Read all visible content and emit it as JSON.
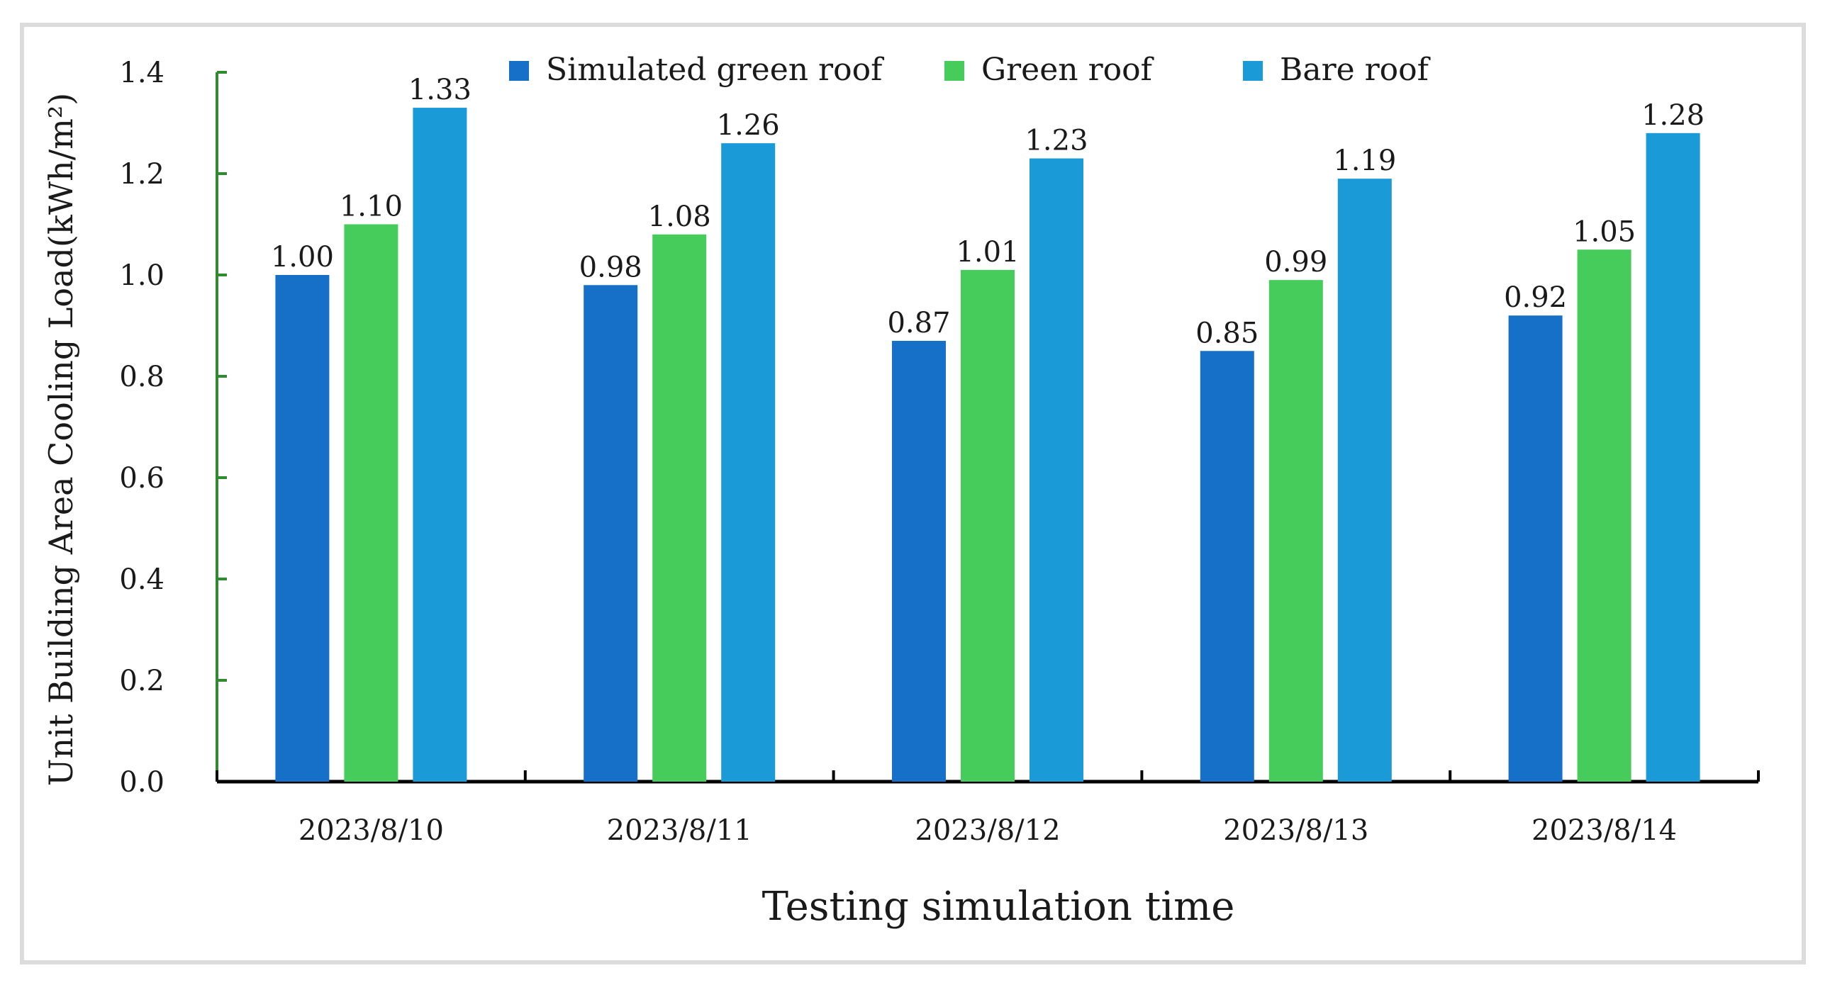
{
  "chart_data": {
    "type": "bar",
    "title": "",
    "xlabel": "Testing simulation time",
    "ylabel": "Unit Building Area Cooling Load(kWh/m²)",
    "categories": [
      "2023/8/10",
      "2023/8/11",
      "2023/8/12",
      "2023/8/13",
      "2023/8/14"
    ],
    "series": [
      {
        "name": "Simulated green roof",
        "color": "#1670c8",
        "values": [
          1.0,
          0.98,
          0.87,
          0.85,
          0.92
        ],
        "labels": [
          "1.00",
          "0.98",
          "0.87",
          "0.85",
          "0.92"
        ]
      },
      {
        "name": "Green roof",
        "color": "#45cc5a",
        "values": [
          1.1,
          1.08,
          1.01,
          0.99,
          1.05
        ],
        "labels": [
          "1.10",
          "1.08",
          "1.01",
          "0.99",
          "1.05"
        ]
      },
      {
        "name": "Bare roof",
        "color": "#1b9ad8",
        "values": [
          1.33,
          1.26,
          1.23,
          1.19,
          1.28
        ],
        "labels": [
          "1.33",
          "1.26",
          "1.23",
          "1.19",
          "1.28"
        ]
      }
    ],
    "ylim": [
      0,
      1.4
    ],
    "yticks": [
      "0.0",
      "0.2",
      "0.4",
      "0.6",
      "0.8",
      "1.0",
      "1.2",
      "1.4"
    ],
    "legend_position": "top",
    "grid": false,
    "y_axis_color": "#2e8b2e",
    "x_axis_color": "#000000"
  }
}
